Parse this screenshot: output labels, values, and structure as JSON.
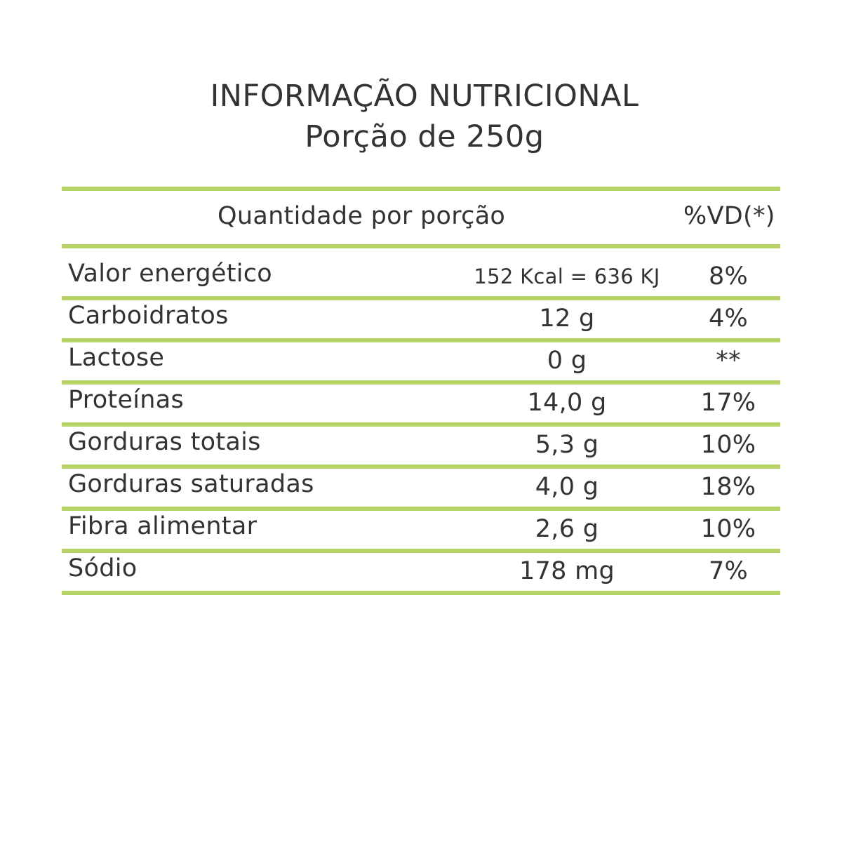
{
  "title": {
    "line1": "INFORMAÇÃO NUTRICIONAL",
    "line2": "Porção de 250g"
  },
  "table": {
    "header": {
      "quantity": "Quantidade por porção",
      "daily_value": "%VD(*)"
    },
    "rows": [
      {
        "label": "Valor energético",
        "amount": "152 Kcal = 636 KJ",
        "daily_value": "8%"
      },
      {
        "label": "Carboidratos",
        "amount": "12 g",
        "daily_value": "4%"
      },
      {
        "label": "Lactose",
        "amount": "0 g",
        "daily_value": "**"
      },
      {
        "label": "Proteínas",
        "amount": "14,0 g",
        "daily_value": "17%"
      },
      {
        "label": "Gorduras totais",
        "amount": "5,3 g",
        "daily_value": "10%"
      },
      {
        "label": "Gorduras saturadas",
        "amount": "4,0 g",
        "daily_value": "18%"
      },
      {
        "label": "Fibra alimentar",
        "amount": "2,6 g",
        "daily_value": "10%"
      },
      {
        "label": "Sódio",
        "amount": "178 mg",
        "daily_value": "7%"
      }
    ]
  },
  "colors": {
    "rule": "#b6d264",
    "text": "#333333",
    "background": "#ffffff"
  }
}
